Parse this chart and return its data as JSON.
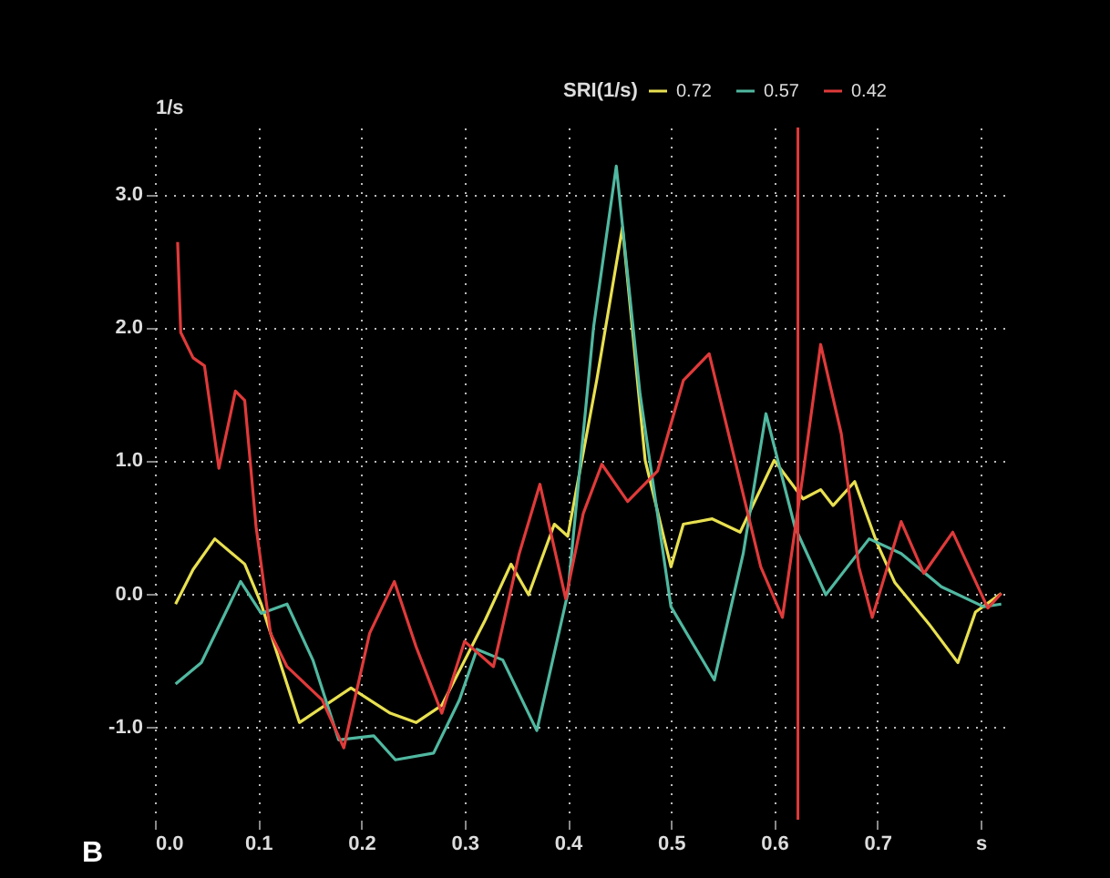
{
  "chart_data": {
    "type": "line",
    "legend_title": "SRI(1/s)",
    "ylabel": "1/s",
    "annotations": [
      "B"
    ],
    "legend": "top right",
    "grid": true,
    "xlim": [
      0,
      0.83
    ],
    "ylim": [
      -1.7,
      3.5
    ],
    "xticks": [
      {
        "value": 0,
        "label": "0.0"
      },
      {
        "value": 0.1,
        "label": "0.1"
      },
      {
        "value": 0.2,
        "label": "0.2"
      },
      {
        "value": 0.3,
        "label": "0.3"
      },
      {
        "value": 0.4,
        "label": "0.4"
      },
      {
        "value": 0.5,
        "label": "0.5"
      },
      {
        "value": 0.6,
        "label": "0.6"
      },
      {
        "value": 0.7,
        "label": "0.7"
      },
      {
        "value": 0.8,
        "label": "s"
      }
    ],
    "yticks": [
      {
        "value": -1,
        "label": "-1.0"
      },
      {
        "value": 0,
        "label": "0.0"
      },
      {
        "value": 1,
        "label": "1.0"
      },
      {
        "value": 2,
        "label": "2.0"
      },
      {
        "value": 3,
        "label": "3.0"
      }
    ],
    "ref_lines": [
      {
        "axis": "x",
        "value": 0.623,
        "color": "#e03a3a"
      }
    ],
    "series": [
      {
        "name": "0.72",
        "color": "#e8e050",
        "x": [
          0.02,
          0.037,
          0.058,
          0.087,
          0.103,
          0.14,
          0.19,
          0.228,
          0.253,
          0.278,
          0.32,
          0.345,
          0.362,
          0.387,
          0.4,
          0.428,
          0.453,
          0.475,
          0.5,
          0.512,
          0.54,
          0.567,
          0.6,
          0.628,
          0.645,
          0.657,
          0.678,
          0.7,
          0.717,
          0.75,
          0.778,
          0.795,
          0.82
        ],
        "values": [
          -0.08,
          0.18,
          0.41,
          0.22,
          -0.08,
          -0.97,
          -0.71,
          -0.9,
          -0.97,
          -0.84,
          -0.2,
          0.22,
          -0.01,
          0.52,
          0.43,
          1.6,
          2.75,
          1.0,
          0.2,
          0.52,
          0.56,
          0.46,
          1.0,
          0.71,
          0.78,
          0.66,
          0.84,
          0.37,
          0.08,
          -0.23,
          -0.52,
          -0.14,
          0.0
        ]
      },
      {
        "name": "0.57",
        "color": "#50b8a0",
        "x": [
          0.02,
          0.045,
          0.083,
          0.103,
          0.128,
          0.153,
          0.178,
          0.212,
          0.233,
          0.27,
          0.295,
          0.312,
          0.337,
          0.37,
          0.4,
          0.425,
          0.447,
          0.47,
          0.5,
          0.542,
          0.57,
          0.592,
          0.62,
          0.65,
          0.692,
          0.723,
          0.762,
          0.803,
          0.82
        ],
        "values": [
          -0.68,
          -0.52,
          0.09,
          -0.15,
          -0.08,
          -0.5,
          -1.1,
          -1.07,
          -1.25,
          -1.2,
          -0.8,
          -0.42,
          -0.5,
          -1.03,
          0.0,
          2.0,
          3.21,
          1.5,
          -0.1,
          -0.65,
          0.3,
          1.35,
          0.5,
          -0.01,
          0.41,
          0.3,
          0.05,
          -0.1,
          -0.08
        ]
      },
      {
        "name": "0.42",
        "color": "#e03a3a",
        "x": [
          0.022,
          0.025,
          0.037,
          0.048,
          0.062,
          0.078,
          0.087,
          0.098,
          0.112,
          0.128,
          0.162,
          0.183,
          0.208,
          0.232,
          0.253,
          0.278,
          0.3,
          0.328,
          0.353,
          0.373,
          0.398,
          0.415,
          0.433,
          0.458,
          0.487,
          0.512,
          0.537,
          0.562,
          0.587,
          0.608,
          0.628,
          0.645,
          0.665,
          0.682,
          0.695,
          0.723,
          0.745,
          0.773,
          0.807,
          0.82
        ],
        "values": [
          2.64,
          1.96,
          1.77,
          1.71,
          0.94,
          1.52,
          1.45,
          0.5,
          -0.3,
          -0.55,
          -0.8,
          -1.16,
          -0.3,
          0.09,
          -0.4,
          -0.9,
          -0.36,
          -0.55,
          0.3,
          0.82,
          -0.04,
          0.6,
          0.97,
          0.69,
          0.92,
          1.6,
          1.8,
          1.0,
          0.2,
          -0.18,
          0.9,
          1.87,
          1.2,
          0.2,
          -0.18,
          0.54,
          0.15,
          0.46,
          -0.11,
          0.0
        ]
      }
    ]
  }
}
